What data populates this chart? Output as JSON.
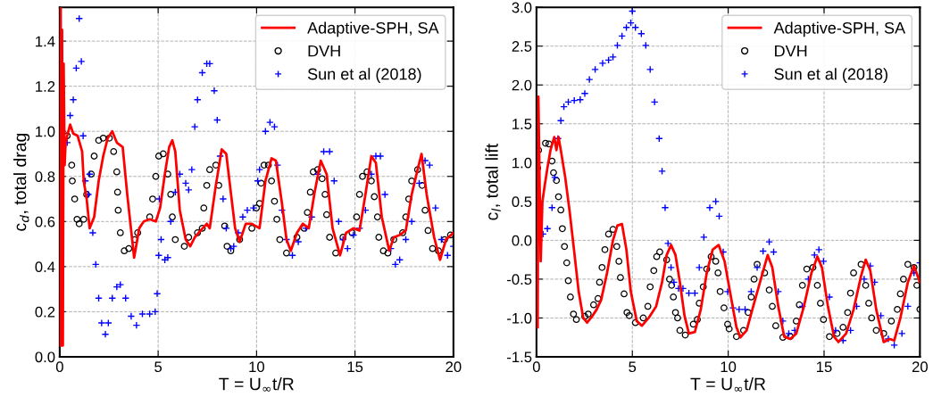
{
  "chart_data": [
    {
      "type": "line",
      "xlabel": "T = U$_{∞}$t/R",
      "ylabel": "c$_{d}$, total drag",
      "xlim": [
        0,
        20
      ],
      "xticks": [
        0,
        5,
        10,
        15,
        20
      ],
      "ylim": [
        0,
        1.55
      ],
      "yticks": [
        {
          "value": 0,
          "label": "0.0"
        },
        0.2,
        0.4,
        0.6,
        0.8,
        {
          "value": 1,
          "label": "1.0"
        },
        1.2,
        1.4
      ],
      "grid": true,
      "legend": "top right",
      "series": [
        {
          "name": "Adaptive-SPH, SA",
          "color": "#ff0000",
          "marker": "none",
          "line_style": "solid",
          "x": [
            0.02,
            0.05,
            0.08,
            0.12,
            0.16,
            0.2,
            0.25,
            0.3,
            0.38,
            0.53,
            0.69,
            0.91,
            1.14,
            1.22,
            1.37,
            1.52,
            1.75,
            1.98,
            2.21,
            2.44,
            2.67,
            2.9,
            3.2,
            3.43,
            3.78,
            4.04,
            4.27,
            4.57,
            4.88,
            5.1,
            5.34,
            5.56,
            5.72,
            5.87,
            6.1,
            6.4,
            6.63,
            6.86,
            7.16,
            7.47,
            7.62,
            7.93,
            8.23,
            8.46,
            8.69,
            8.91,
            9.14,
            9.45,
            9.76,
            10.15,
            10.45,
            10.76,
            10.98,
            11.29,
            11.52,
            11.74,
            12.05,
            12.35,
            12.65,
            12.95,
            13.26,
            13.56,
            13.86,
            14.24,
            14.55,
            14.92,
            15.23,
            15.53,
            15.83,
            16.06,
            16.36,
            16.74,
            16.97,
            17.27,
            17.58,
            17.88,
            18.18,
            18.38,
            18.64,
            19.02,
            19.32,
            19.62,
            20
          ],
          "values": [
            0.05,
            1.55,
            0.05,
            1.45,
            0.05,
            1.3,
            0.85,
            0.95,
            0.98,
            1.03,
            0.99,
            0.98,
            0.91,
            0.78,
            0.7,
            0.57,
            0.62,
            0.78,
            0.89,
            0.97,
            1.0,
            0.95,
            0.93,
            0.72,
            0.44,
            0.57,
            0.6,
            0.61,
            0.6,
            0.66,
            0.81,
            0.93,
            0.96,
            0.91,
            0.65,
            0.52,
            0.49,
            0.53,
            0.56,
            0.59,
            0.57,
            0.76,
            0.92,
            0.9,
            0.73,
            0.57,
            0.51,
            0.59,
            0.59,
            0.57,
            0.78,
            0.88,
            0.87,
            0.68,
            0.52,
            0.47,
            0.55,
            0.59,
            0.57,
            0.73,
            0.87,
            0.81,
            0.57,
            0.45,
            0.55,
            0.57,
            0.56,
            0.72,
            0.89,
            0.86,
            0.62,
            0.47,
            0.53,
            0.54,
            0.56,
            0.72,
            0.83,
            0.9,
            0.72,
            0.53,
            0.43,
            0.52,
            0.55
          ]
        },
        {
          "name": "DVH",
          "type": "scatter",
          "color": "#000000",
          "marker": "circle",
          "x": [
            0.38,
            0.61,
            0.64,
            0.76,
            0.88,
            0.99,
            1.22,
            1.37,
            1.6,
            1.75,
            1.98,
            2.21,
            2.52,
            2.74,
            2.9,
            2.94,
            2.97,
            3.08,
            3.28,
            3.51,
            3.81,
            3.96,
            4.57,
            4.72,
            4.88,
            5.03,
            5.26,
            5.49,
            5.64,
            5.72,
            5.87,
            6.33,
            6.55,
            7.0,
            7.24,
            7.32,
            7.47,
            7.62,
            7.93,
            8.08,
            8.38,
            8.5,
            8.69,
            9.14,
            9.76,
            9.99,
            10.15,
            10.23,
            10.38,
            10.6,
            10.76,
            10.91,
            11.03,
            11.18,
            11.52,
            12.05,
            12.42,
            12.58,
            12.73,
            12.88,
            13.1,
            13.33,
            13.48,
            13.56,
            13.71,
            14.02,
            14.39,
            14.85,
            15.08,
            15.23,
            15.38,
            15.61,
            15.83,
            15.98,
            16.14,
            16.21,
            16.44,
            16.67,
            16.97,
            17.42,
            17.58,
            17.73,
            17.88,
            18.18,
            18.41,
            18.56,
            18.71,
            18.94,
            19.24,
            19.55,
            19.85
          ],
          "values": [
            0.98,
            0.85,
            0.78,
            0.7,
            0.61,
            0.59,
            0.61,
            0.72,
            0.81,
            0.89,
            0.96,
            0.97,
            0.97,
            0.91,
            0.82,
            0.73,
            0.65,
            0.55,
            0.47,
            0.48,
            0.52,
            0.55,
            0.62,
            0.7,
            0.8,
            0.89,
            0.9,
            0.81,
            0.72,
            0.62,
            0.52,
            0.49,
            0.53,
            0.55,
            0.57,
            0.66,
            0.76,
            0.83,
            0.85,
            0.76,
            0.58,
            0.49,
            0.47,
            0.52,
            0.57,
            0.66,
            0.68,
            0.77,
            0.85,
            0.85,
            0.78,
            0.69,
            0.61,
            0.52,
            0.46,
            0.53,
            0.57,
            0.64,
            0.73,
            0.82,
            0.83,
            0.79,
            0.72,
            0.63,
            0.53,
            0.46,
            0.53,
            0.55,
            0.62,
            0.72,
            0.8,
            0.82,
            0.78,
            0.71,
            0.62,
            0.53,
            0.47,
            0.46,
            0.52,
            0.55,
            0.62,
            0.7,
            0.78,
            0.83,
            0.76,
            0.65,
            0.56,
            0.48,
            0.47,
            0.52,
            0.54
          ]
        },
        {
          "name": "Sun et al (2018)",
          "type": "scatter",
          "color": "#0000ff",
          "marker": "cross",
          "x": [
            0.38,
            0.53,
            0.69,
            0.84,
            0.99,
            1.1,
            1.19,
            1.3,
            1.45,
            1.52,
            1.68,
            1.83,
            1.98,
            2.13,
            2.32,
            2.47,
            2.67,
            2.9,
            3.08,
            3.35,
            3.63,
            3.9,
            4.2,
            4.57,
            4.85,
            4.95,
            5.03,
            5.06,
            5.15,
            5.34,
            5.49,
            5.64,
            5.87,
            6.1,
            6.4,
            6.55,
            6.71,
            6.86,
            7.0,
            7.24,
            7.47,
            7.62,
            7.85,
            8.0,
            8.15,
            8.3,
            8.46,
            8.69,
            8.84,
            9.07,
            9.3,
            9.53,
            9.84,
            10.06,
            10.15,
            10.45,
            10.68,
            10.91,
            11.06,
            11.29,
            11.52,
            11.82,
            12.12,
            12.5,
            12.8,
            13.1,
            13.41,
            13.71,
            13.94,
            14.17,
            14.39,
            14.62,
            14.92,
            15.23,
            15.53,
            15.83,
            16.06,
            16.29,
            16.52,
            16.82,
            17.05,
            17.27,
            17.58,
            17.88,
            18.26,
            18.56,
            18.79,
            19.09,
            19.39,
            19.7,
            20
          ],
          "values": [
            0.95,
            1.07,
            1.14,
            1.28,
            1.5,
            1.31,
            0.98,
            0.78,
            0.72,
            0.81,
            0.55,
            0.41,
            0.26,
            0.15,
            0.1,
            0.15,
            0.26,
            0.31,
            0.32,
            0.26,
            0.18,
            0.14,
            0.19,
            0.19,
            0.2,
            0.28,
            0.45,
            0.7,
            0.52,
            0.43,
            0.44,
            0.6,
            0.73,
            0.81,
            0.77,
            0.74,
            0.83,
            1.02,
            1.14,
            1.26,
            1.3,
            1.3,
            1.18,
            1.05,
            0.89,
            0.7,
            0.57,
            0.48,
            0.49,
            0.55,
            0.62,
            0.65,
            0.66,
            0.78,
            0.83,
            1.0,
            1.04,
            1.02,
            0.85,
            0.65,
            0.52,
            0.45,
            0.51,
            0.57,
            0.62,
            0.81,
            0.91,
            0.91,
            0.78,
            0.6,
            0.52,
            0.48,
            0.54,
            0.57,
            0.65,
            0.81,
            0.89,
            0.89,
            0.72,
            0.48,
            0.41,
            0.43,
            0.52,
            0.6,
            0.77,
            0.87,
            0.85,
            0.66,
            0.52,
            0.45,
            0.49
          ]
        }
      ]
    },
    {
      "type": "line",
      "xlabel": "T = U$_{∞}$t/R",
      "ylabel": "c$_{l}$, total lift",
      "xlim": [
        0,
        20
      ],
      "xticks": [
        0,
        5,
        10,
        15,
        20
      ],
      "ylim": [
        -1.5,
        3.0
      ],
      "yticks": [
        -1.5,
        {
          "value": -1,
          "label": "-1.0"
        },
        -0.5,
        {
          "value": 0,
          "label": "0.0"
        },
        0.5,
        {
          "value": 1,
          "label": "1.0"
        },
        1.5,
        {
          "value": 2,
          "label": "2.0"
        },
        2.5,
        {
          "value": 3,
          "label": "3.0"
        }
      ],
      "grid": true,
      "legend": "top right",
      "series": [
        {
          "name": "Adaptive-SPH, SA",
          "color": "#ff0000",
          "marker": "none",
          "line_style": "solid",
          "x": [
            0.06,
            0.1,
            0.22,
            0.31,
            0.42,
            0.57,
            0.73,
            0.93,
            1.04,
            1.15,
            1.27,
            1.5,
            1.74,
            1.97,
            2.2,
            2.44,
            2.64,
            2.9,
            3.14,
            3.37,
            3.68,
            3.99,
            4.22,
            4.46,
            4.69,
            4.92,
            5.23,
            5.5,
            5.85,
            6.24,
            6.55,
            6.79,
            7.02,
            7.25,
            7.48,
            7.72,
            7.95,
            8.26,
            8.57,
            8.88,
            9.19,
            9.5,
            9.81,
            10.12,
            10.43,
            10.64,
            10.96,
            11.35,
            11.75,
            12.06,
            12.3,
            12.61,
            12.92,
            13.24,
            13.55,
            13.95,
            14.34,
            14.65,
            14.89,
            15.2,
            15.52,
            15.75,
            16.15,
            16.54,
            16.93,
            17.17,
            17.41,
            17.72,
            18.11,
            18.43,
            18.66,
            18.98,
            19.37,
            19.69,
            20
          ],
          "values": [
            -1.12,
            1.85,
            -0.27,
            0.5,
            0.69,
            0.93,
            1.16,
            1.33,
            1.16,
            1.33,
            1.16,
            0.81,
            0.35,
            -0.15,
            -0.66,
            -1.0,
            -1.06,
            -0.98,
            -0.89,
            -0.77,
            -0.42,
            0.0,
            0.19,
            0.21,
            -0.12,
            -0.66,
            -1.04,
            -1.1,
            -1.0,
            -0.85,
            -0.54,
            -0.19,
            -0.06,
            -0.19,
            -0.54,
            -0.97,
            -1.2,
            -1.18,
            -0.89,
            -0.42,
            -0.12,
            -0.06,
            -0.27,
            -0.7,
            -1.12,
            -1.25,
            -1.16,
            -0.81,
            -0.46,
            -0.19,
            -0.35,
            -0.85,
            -1.24,
            -1.27,
            -1.2,
            -0.85,
            -0.42,
            -0.21,
            -0.35,
            -0.85,
            -1.24,
            -1.31,
            -1.2,
            -0.89,
            -0.46,
            -0.25,
            -0.39,
            -0.89,
            -1.31,
            -1.27,
            -1.29,
            -1.0,
            -0.54,
            -0.33,
            -0.54
          ]
        },
        {
          "name": "DVH",
          "type": "scatter",
          "color": "#000000",
          "marker": "circle",
          "x": [
            0.06,
            0.11,
            0.47,
            0.65,
            0.81,
            0.89,
            1.04,
            1.15,
            1.27,
            1.35,
            1.46,
            1.58,
            1.66,
            1.77,
            1.93,
            2.08,
            2.52,
            2.7,
            2.98,
            3.21,
            3.29,
            3.42,
            3.57,
            3.76,
            3.99,
            4.19,
            4.3,
            4.38,
            4.57,
            4.72,
            4.84,
            5.16,
            5.57,
            5.81,
            5.93,
            6.12,
            6.27,
            6.43,
            6.79,
            6.94,
            7.05,
            7.14,
            7.25,
            7.36,
            7.48,
            7.76,
            8.18,
            8.39,
            8.49,
            8.7,
            8.88,
            9.11,
            9.35,
            9.47,
            9.58,
            9.78,
            9.97,
            10.05,
            10.43,
            10.8,
            11.04,
            11.2,
            11.35,
            11.51,
            11.9,
            12.14,
            12.3,
            12.48,
            12.85,
            13.24,
            13.55,
            13.71,
            13.87,
            14.1,
            14.42,
            14.65,
            14.81,
            14.97,
            15.28,
            15.68,
            15.99,
            16.23,
            16.38,
            16.54,
            16.93,
            17.17,
            17.33,
            17.48,
            17.72,
            18.11,
            18.51,
            18.82,
            18.98,
            19.14,
            19.37,
            19.69,
            19.84,
            20
          ],
          "values": [
            0.93,
            1.16,
            1.25,
            1.24,
            1.02,
            0.87,
            0.77,
            0.56,
            0.39,
            0.15,
            -0.08,
            -0.29,
            -0.52,
            -0.73,
            -0.95,
            -1.02,
            -0.98,
            -0.95,
            -0.83,
            -0.75,
            -0.54,
            -0.35,
            -0.12,
            0.08,
            0.14,
            -0.08,
            -0.27,
            -0.48,
            -0.69,
            -0.93,
            -0.97,
            -1.06,
            -1.0,
            -0.85,
            -0.6,
            -0.39,
            -0.21,
            -0.15,
            -0.25,
            -0.5,
            -0.58,
            -0.73,
            -0.93,
            -1.0,
            -1.16,
            -1.22,
            -1.08,
            -1.02,
            -0.81,
            -0.6,
            -0.37,
            -0.21,
            -0.27,
            -0.42,
            -0.66,
            -0.87,
            -1.08,
            -1.14,
            -1.24,
            -1.16,
            -0.93,
            -0.73,
            -0.5,
            -0.31,
            -0.42,
            -0.64,
            -0.85,
            -1.1,
            -1.25,
            -1.24,
            -1.04,
            -0.83,
            -0.58,
            -0.37,
            -0.35,
            -0.58,
            -0.81,
            -1.02,
            -1.24,
            -1.2,
            -1.12,
            -0.93,
            -0.68,
            -0.42,
            -0.31,
            -0.58,
            -0.81,
            -1.0,
            -1.16,
            -1.2,
            -1.04,
            -0.89,
            -0.69,
            -0.5,
            -0.31,
            -0.35,
            -0.58,
            -0.89
          ]
        },
        {
          "name": "Sun et al (2018)",
          "type": "scatter",
          "color": "#0000ff",
          "marker": "cross",
          "x": [
            0.34,
            0.57,
            0.81,
            0.96,
            1.12,
            1.27,
            1.43,
            1.66,
            1.97,
            2.28,
            2.52,
            2.76,
            3.06,
            3.45,
            3.76,
            3.99,
            4.22,
            4.46,
            4.69,
            4.92,
            5.0,
            5.16,
            5.47,
            5.7,
            5.93,
            6.16,
            6.4,
            6.55,
            6.71,
            6.86,
            7.02,
            7.17,
            7.41,
            7.64,
            7.95,
            8.26,
            8.49,
            8.73,
            9.04,
            9.35,
            9.53,
            9.74,
            9.97,
            10.25,
            10.57,
            10.88,
            11.2,
            11.51,
            11.82,
            12.14,
            12.37,
            12.61,
            12.85,
            13.16,
            13.47,
            13.87,
            14.18,
            14.5,
            14.73,
            14.97,
            15.28,
            15.6,
            15.99,
            16.38,
            16.7,
            17.09,
            17.41,
            17.64,
            17.96,
            18.35,
            18.66,
            19.06,
            19.37,
            19.69,
            20
          ],
          "values": [
            0.08,
            0.15,
            0.42,
            0.81,
            1.31,
            1.54,
            1.72,
            1.78,
            1.8,
            1.81,
            1.89,
            2.07,
            2.2,
            2.28,
            2.32,
            2.36,
            2.51,
            2.63,
            2.74,
            2.8,
            2.95,
            2.74,
            2.66,
            2.51,
            2.2,
            1.78,
            1.31,
            0.89,
            0.42,
            -0.04,
            -0.35,
            -0.54,
            -0.62,
            -0.62,
            -0.68,
            -0.68,
            -0.35,
            0.04,
            0.42,
            0.5,
            0.31,
            -0.15,
            -0.66,
            -0.87,
            -0.89,
            -0.89,
            -0.66,
            -0.35,
            -0.14,
            -0.02,
            -0.15,
            -0.66,
            -1.04,
            -1.2,
            -1.16,
            -0.85,
            -0.5,
            -0.19,
            -0.12,
            -0.27,
            -0.73,
            -1.16,
            -1.29,
            -1.16,
            -0.85,
            -0.5,
            -0.33,
            -0.54,
            -0.97,
            -1.27,
            -1.35,
            -1.2,
            -0.85,
            -0.42,
            -0.29
          ]
        }
      ]
    }
  ]
}
